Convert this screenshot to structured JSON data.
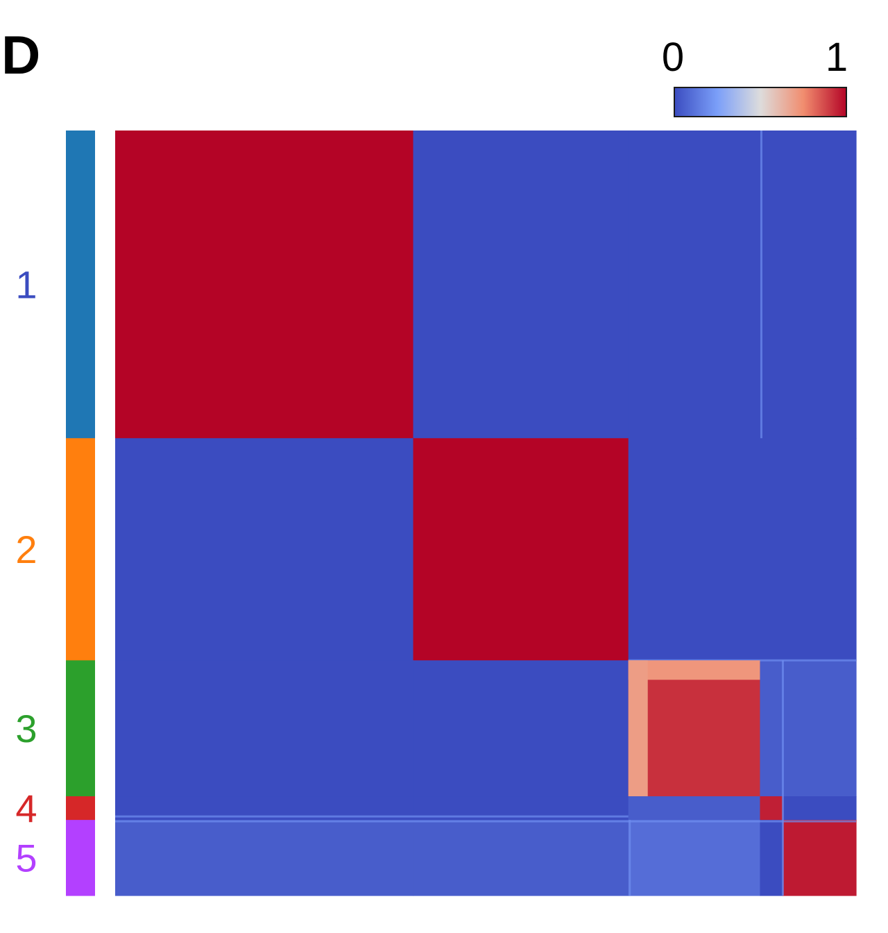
{
  "panel_label": "D",
  "colors": {
    "low": "#3b4cc0",
    "mid": "#dddddd",
    "high": "#b40426",
    "faint_line": "#6f8ff0"
  },
  "chart_data": {
    "type": "heatmap",
    "title": "",
    "xlabel": "",
    "ylabel": "",
    "value_range": [
      0,
      1
    ],
    "colorbar": {
      "placement": "top-right",
      "ticks": [
        "0",
        "1"
      ],
      "colormap": "coolwarm"
    },
    "clusters": [
      {
        "label": "1",
        "size": 403,
        "color": "#1f77b4"
      },
      {
        "label": "2",
        "size": 291,
        "color": "#ff7f0e"
      },
      {
        "label": "3",
        "size": 178,
        "color": "#2ca02c"
      },
      {
        "label": "4",
        "size": 31,
        "color": "#d62728"
      },
      {
        "label": "5",
        "size": 99,
        "color": "#b340ff"
      }
    ],
    "block_values": [
      [
        1.0,
        0.0,
        0.0,
        0.0,
        0.0
      ],
      [
        0.0,
        1.0,
        0.0,
        0.0,
        0.0
      ],
      [
        0.0,
        0.0,
        0.92,
        0.05,
        0.05
      ],
      [
        0.0,
        0.0,
        0.05,
        0.95,
        0.0
      ],
      [
        0.05,
        0.05,
        0.1,
        0.0,
        0.96
      ]
    ],
    "grid": false
  }
}
